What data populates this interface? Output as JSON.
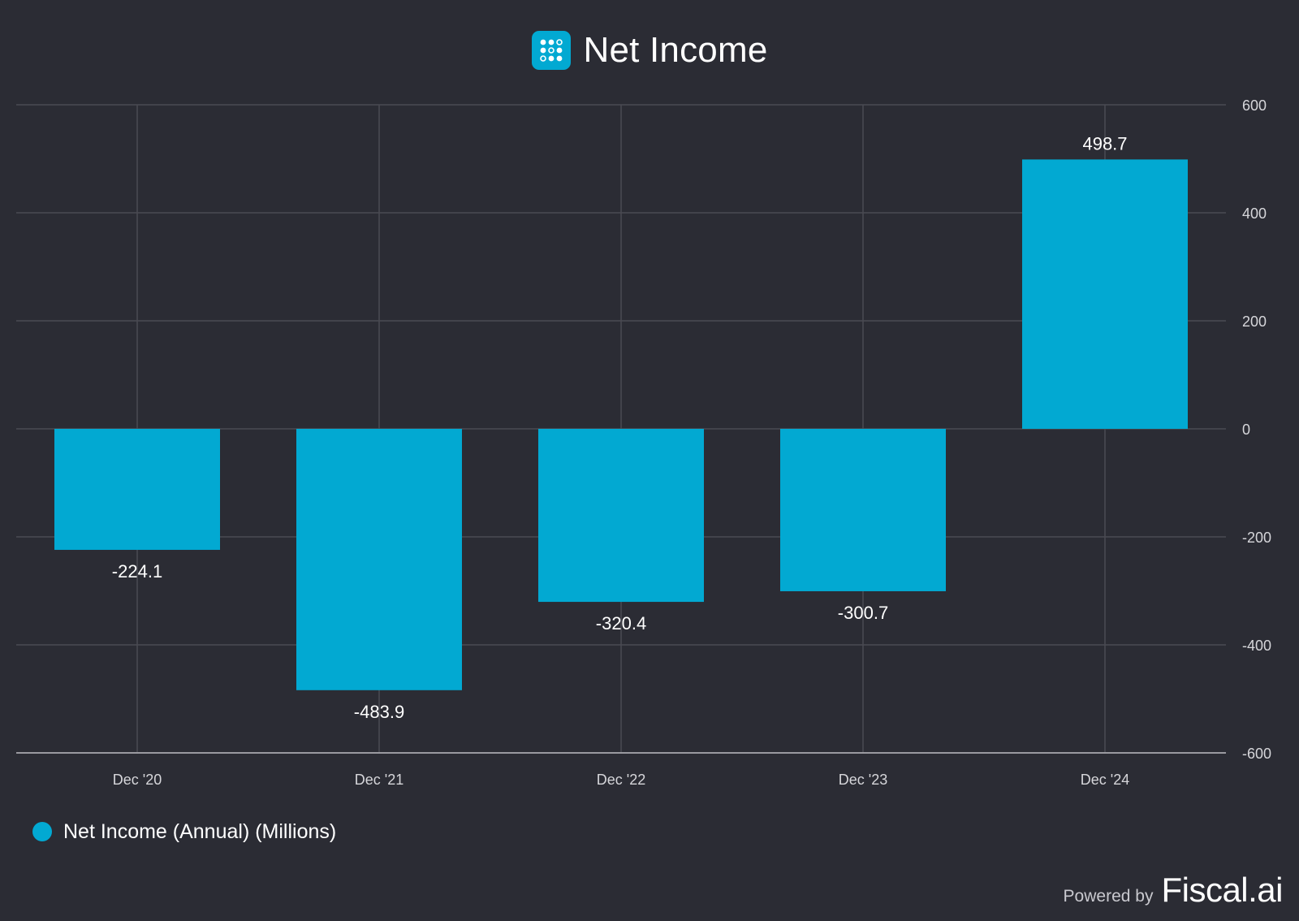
{
  "header": {
    "title": "Net Income",
    "logo_icon": "fiscal-ai-logo-icon"
  },
  "colors": {
    "background": "#2b2c34",
    "bar": "#02a9d2",
    "grid": "#4a4b53",
    "axis": "#9a9aa0",
    "tick_text": "#d6d6da"
  },
  "chart_data": {
    "type": "bar",
    "categories": [
      "Dec '20",
      "Dec '21",
      "Dec '22",
      "Dec '23",
      "Dec '24"
    ],
    "series": [
      {
        "name": "Net Income (Annual) (Millions)",
        "values": [
          -224.1,
          -483.9,
          -320.4,
          -300.7,
          498.7
        ]
      }
    ],
    "data_labels": [
      "-224.1",
      "-483.9",
      "-320.4",
      "-300.7",
      "498.7"
    ],
    "ylim": [
      -600,
      600
    ],
    "yticks": [
      600,
      400,
      200,
      0,
      -200,
      -400,
      -600
    ],
    "y_axis_position": "right",
    "grid": true,
    "legend_position": "bottom-left"
  },
  "legend": {
    "label": "Net Income (Annual) (Millions)"
  },
  "footer": {
    "powered_by": "Powered by",
    "brand": "Fiscal.ai"
  }
}
